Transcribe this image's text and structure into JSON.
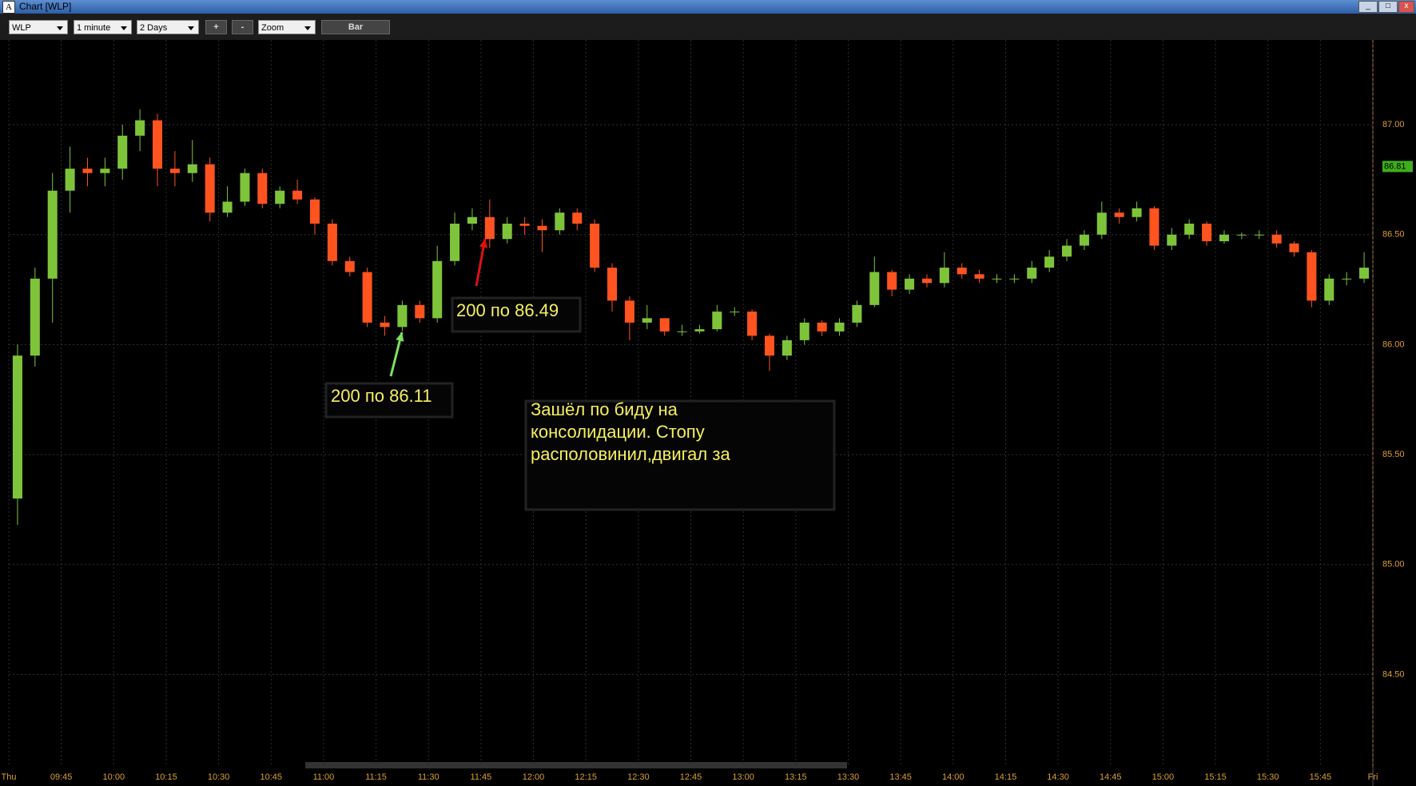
{
  "window": {
    "title": "Chart [WLP]",
    "icon": "A"
  },
  "toolbar": {
    "symbol": "WLP",
    "interval": "1 minute",
    "range": "2 Days",
    "zoom_in": "+",
    "zoom_out": "-",
    "zoom": "Zoom",
    "style": "Bar"
  },
  "chart_data": {
    "type": "candlestick",
    "up_color": "#7ec43a",
    "down_color": "#ff5320",
    "grid": true,
    "x": [
      0,
      5,
      10,
      15,
      20,
      25,
      30,
      35,
      40,
      45,
      50,
      55,
      60,
      65,
      70,
      75,
      80,
      85,
      90,
      95,
      100,
      105,
      110,
      115,
      120,
      125,
      130,
      135,
      140,
      145,
      150,
      155,
      160,
      165,
      170,
      175,
      180,
      185,
      190,
      195,
      200,
      205,
      210,
      215,
      220,
      225,
      230,
      235,
      240,
      245,
      250,
      255,
      260,
      265,
      270,
      275,
      280,
      285,
      290,
      295,
      300,
      305,
      310,
      315,
      320,
      325,
      330,
      335,
      340,
      345,
      350,
      355,
      360,
      365,
      370,
      375,
      380,
      385
    ],
    "open": [
      85.3,
      85.95,
      86.3,
      86.7,
      86.8,
      86.78,
      86.8,
      86.95,
      87.02,
      86.8,
      86.78,
      86.82,
      86.6,
      86.65,
      86.78,
      86.64,
      86.7,
      86.66,
      86.55,
      86.38,
      86.33,
      86.1,
      86.08,
      86.18,
      86.12,
      86.38,
      86.55,
      86.58,
      86.48,
      86.55,
      86.54,
      86.52,
      86.6,
      86.55,
      86.35,
      86.2,
      86.1,
      86.12,
      86.06,
      86.06,
      86.07,
      86.15,
      86.15,
      86.04,
      85.95,
      86.02,
      86.1,
      86.06,
      86.1,
      86.18,
      86.33,
      86.25,
      86.3,
      86.28,
      86.35,
      86.32,
      86.3,
      86.3,
      86.3,
      86.35,
      86.4,
      86.45,
      86.5,
      86.6,
      86.58,
      86.62,
      86.45,
      86.5,
      86.55,
      86.47,
      86.5,
      86.5,
      86.5,
      86.46,
      86.42,
      86.2,
      86.3,
      86.3
    ],
    "high": [
      86.0,
      86.35,
      86.78,
      86.9,
      86.85,
      86.85,
      87.0,
      87.07,
      87.05,
      86.88,
      86.93,
      86.85,
      86.72,
      86.8,
      86.8,
      86.72,
      86.75,
      86.67,
      86.57,
      86.4,
      86.35,
      86.13,
      86.2,
      86.2,
      86.45,
      86.6,
      86.62,
      86.66,
      86.58,
      86.58,
      86.57,
      86.62,
      86.62,
      86.57,
      86.37,
      86.22,
      86.18,
      86.12,
      86.09,
      86.09,
      86.18,
      86.17,
      86.16,
      86.05,
      86.04,
      86.12,
      86.11,
      86.12,
      86.2,
      86.4,
      86.34,
      86.32,
      86.32,
      86.42,
      86.37,
      86.34,
      86.32,
      86.32,
      86.38,
      86.43,
      86.48,
      86.52,
      86.65,
      86.62,
      86.65,
      86.63,
      86.53,
      86.57,
      86.56,
      86.52,
      86.51,
      86.52,
      86.52,
      86.47,
      86.43,
      86.32,
      86.33,
      86.42
    ],
    "low": [
      85.18,
      85.9,
      86.1,
      86.6,
      86.72,
      86.72,
      86.75,
      86.88,
      86.72,
      86.72,
      86.74,
      86.56,
      86.58,
      86.63,
      86.62,
      86.62,
      86.64,
      86.5,
      86.36,
      86.31,
      86.08,
      86.04,
      86.06,
      86.1,
      86.1,
      86.36,
      86.52,
      86.44,
      86.46,
      86.5,
      86.42,
      86.5,
      86.52,
      86.33,
      86.15,
      86.02,
      86.07,
      86.04,
      86.04,
      86.05,
      86.06,
      86.13,
      86.02,
      85.88,
      85.93,
      86.0,
      86.04,
      86.04,
      86.08,
      86.17,
      86.22,
      86.23,
      86.26,
      86.26,
      86.3,
      86.28,
      86.28,
      86.28,
      86.28,
      86.33,
      86.38,
      86.43,
      86.48,
      86.55,
      86.56,
      86.43,
      86.43,
      86.48,
      86.45,
      86.46,
      86.48,
      86.48,
      86.44,
      86.4,
      86.17,
      86.18,
      86.27,
      86.28
    ],
    "close": [
      85.95,
      86.3,
      86.7,
      86.8,
      86.78,
      86.8,
      86.95,
      87.02,
      86.8,
      86.78,
      86.82,
      86.6,
      86.65,
      86.78,
      86.64,
      86.7,
      86.66,
      86.55,
      86.38,
      86.33,
      86.1,
      86.08,
      86.18,
      86.12,
      86.38,
      86.55,
      86.58,
      86.48,
      86.55,
      86.54,
      86.52,
      86.6,
      86.55,
      86.35,
      86.2,
      86.1,
      86.12,
      86.06,
      86.06,
      86.07,
      86.15,
      86.15,
      86.04,
      85.95,
      86.02,
      86.1,
      86.06,
      86.1,
      86.18,
      86.33,
      86.25,
      86.3,
      86.28,
      86.35,
      86.32,
      86.3,
      86.3,
      86.3,
      86.35,
      86.4,
      86.45,
      86.5,
      86.6,
      86.58,
      86.62,
      86.45,
      86.5,
      86.55,
      86.47,
      86.5,
      86.5,
      86.5,
      86.46,
      86.42,
      86.2,
      86.3,
      86.3,
      86.35
    ],
    "xlim": [
      0,
      390
    ],
    "xticks": [
      {
        "value": 0,
        "label": "Thu"
      },
      {
        "value": 15,
        "label": "09:45"
      },
      {
        "value": 30,
        "label": "10:00"
      },
      {
        "value": 45,
        "label": "10:15"
      },
      {
        "value": 60,
        "label": "10:30"
      },
      {
        "value": 75,
        "label": "10:45"
      },
      {
        "value": 90,
        "label": "11:00"
      },
      {
        "value": 105,
        "label": "11:15"
      },
      {
        "value": 120,
        "label": "11:30"
      },
      {
        "value": 135,
        "label": "11:45"
      },
      {
        "value": 150,
        "label": "12:00"
      },
      {
        "value": 165,
        "label": "12:15"
      },
      {
        "value": 180,
        "label": "12:30"
      },
      {
        "value": 195,
        "label": "12:45"
      },
      {
        "value": 210,
        "label": "13:00"
      },
      {
        "value": 225,
        "label": "13:15"
      },
      {
        "value": 240,
        "label": "13:30"
      },
      {
        "value": 255,
        "label": "13:45"
      },
      {
        "value": 270,
        "label": "14:00"
      },
      {
        "value": 285,
        "label": "14:15"
      },
      {
        "value": 300,
        "label": "14:30"
      },
      {
        "value": 315,
        "label": "14:45"
      },
      {
        "value": 330,
        "label": "15:00"
      },
      {
        "value": 345,
        "label": "15:15"
      },
      {
        "value": 360,
        "label": "15:30"
      },
      {
        "value": 375,
        "label": "15:45"
      },
      {
        "value": 390,
        "label": "Fri"
      }
    ],
    "ylim": [
      84.08,
      87.36
    ],
    "yticks": [
      {
        "value": 84.5,
        "label": "84.50"
      },
      {
        "value": 85,
        "label": "85.00"
      },
      {
        "value": 85.5,
        "label": "85.50"
      },
      {
        "value": 86,
        "label": "86.00"
      },
      {
        "value": 86.5,
        "label": "86.50"
      },
      {
        "value": 87,
        "label": "87.00"
      }
    ],
    "last_price": 86.81,
    "annotations": [
      "200 по 86.11",
      "200 по 86.49"
    ],
    "note": [
      "Зашёл по биду на",
      "консолидации. Стопу",
      "располовинил,двигал за"
    ]
  }
}
